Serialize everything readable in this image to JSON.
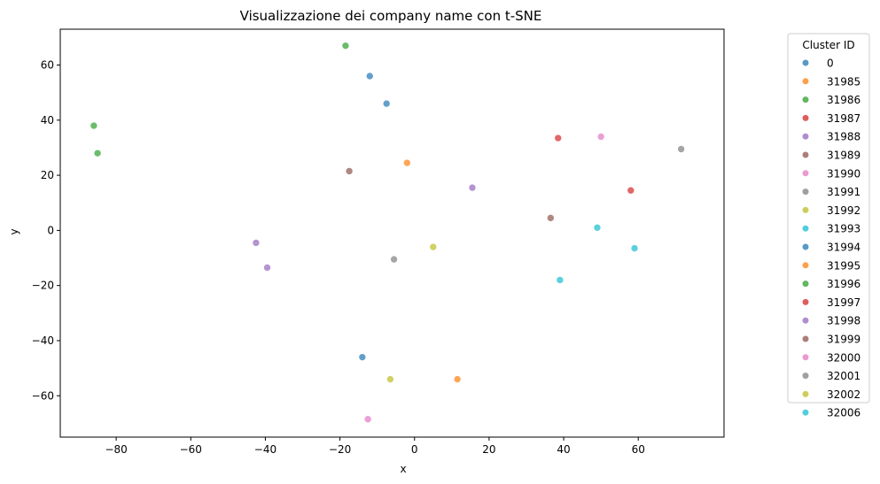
{
  "chart_data": {
    "type": "scatter",
    "title": "Visualizzazione dei company name con t-SNE",
    "xlabel": "x",
    "ylabel": "y",
    "xlim": [
      -95,
      83
    ],
    "ylim": [
      -75,
      73
    ],
    "xticks": [
      -80,
      -60,
      -40,
      -20,
      0,
      20,
      40,
      60
    ],
    "yticks": [
      -60,
      -40,
      -20,
      0,
      20,
      40,
      60
    ],
    "grid": false,
    "legend": {
      "title": "Cluster ID",
      "placement": "outside-right"
    },
    "series": [
      {
        "name": "0",
        "color": "#1f77b4",
        "points": [
          [
            -12,
            56
          ],
          [
            -7.5,
            46
          ]
        ]
      },
      {
        "name": "31985",
        "color": "#ff7f0e",
        "points": [
          [
            -2,
            24.5
          ]
        ]
      },
      {
        "name": "31986",
        "color": "#2ca02c",
        "points": [
          [
            -18.5,
            67
          ],
          [
            -86,
            38
          ],
          [
            -85,
            28
          ]
        ]
      },
      {
        "name": "31987",
        "color": "#d62728",
        "points": [
          [
            38.5,
            33.5
          ]
        ]
      },
      {
        "name": "31988",
        "color": "#9467bd",
        "points": [
          [
            15.5,
            15.5
          ]
        ]
      },
      {
        "name": "31989",
        "color": "#8c564b",
        "points": [
          [
            -17.5,
            21.5
          ],
          [
            36.5,
            4.5
          ]
        ]
      },
      {
        "name": "31990",
        "color": "#e377c2",
        "points": [
          [
            50,
            34
          ]
        ]
      },
      {
        "name": "31991",
        "color": "#7f7f7f",
        "points": [
          [
            71.5,
            29.5
          ]
        ]
      },
      {
        "name": "31992",
        "color": "#bcbd22",
        "points": [
          [
            5,
            -6
          ]
        ]
      },
      {
        "name": "31993",
        "color": "#17becf",
        "points": [
          [
            49,
            1
          ]
        ]
      },
      {
        "name": "31994",
        "color": "#1f77b4",
        "points": [
          [
            -14,
            -46
          ]
        ]
      },
      {
        "name": "31995",
        "color": "#ff7f0e",
        "points": [
          [
            11.5,
            -54
          ]
        ]
      },
      {
        "name": "31996",
        "color": "#2ca02c",
        "points": []
      },
      {
        "name": "31997",
        "color": "#d62728",
        "points": [
          [
            58,
            14.5
          ]
        ]
      },
      {
        "name": "31998",
        "color": "#9467bd",
        "points": [
          [
            -42.5,
            -4.5
          ],
          [
            -39.5,
            -13.5
          ]
        ]
      },
      {
        "name": "31999",
        "color": "#8c564b",
        "points": []
      },
      {
        "name": "32000",
        "color": "#e377c2",
        "points": [
          [
            -12.5,
            -68.5
          ]
        ]
      },
      {
        "name": "32001",
        "color": "#7f7f7f",
        "points": [
          [
            -5.5,
            -10.5
          ]
        ]
      },
      {
        "name": "32002",
        "color": "#bcbd22",
        "points": [
          [
            -6.5,
            -54
          ]
        ]
      },
      {
        "name": "32006",
        "color": "#17becf",
        "points": [
          [
            59,
            -6.5
          ],
          [
            39,
            -18
          ]
        ]
      }
    ]
  }
}
